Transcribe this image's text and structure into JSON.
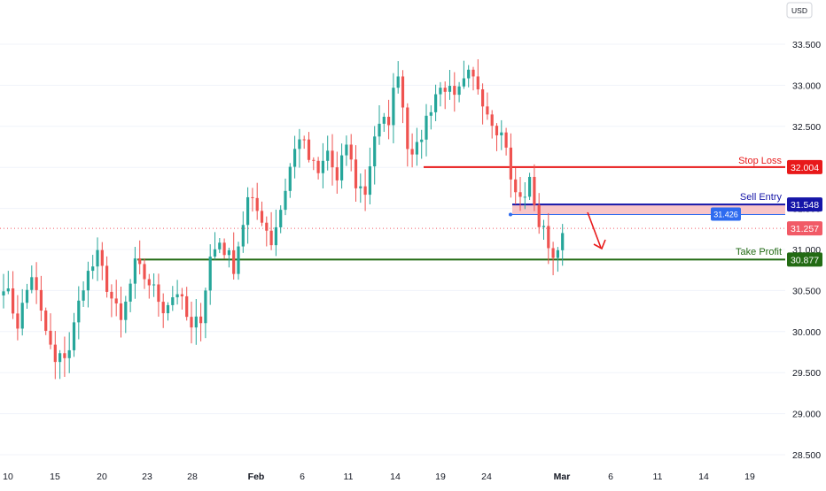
{
  "header": {
    "currency": "USD"
  },
  "levels": {
    "stop_loss": {
      "label": "Stop Loss",
      "value": "32.004",
      "color": "#e8191a"
    },
    "sell_entry": {
      "label": "Sell Entry",
      "value": "31.548",
      "color": "#1515a8"
    },
    "take_profit": {
      "label": "Take Profit",
      "value": "30.877",
      "color": "#236b14"
    },
    "current_price": {
      "value": "31.257",
      "color": "#f15a66"
    },
    "crosshair_price": {
      "value": "31.426",
      "color": "#2e6bf0"
    }
  },
  "colors": {
    "up": "#26a69a",
    "down": "#ef5350",
    "zone": "#f8c5c8",
    "arrow": "#e8191a"
  },
  "chart_data": {
    "type": "candlestick",
    "ylim": [
      28.4,
      34.3
    ],
    "y_ticks": [
      "28.500",
      "29.000",
      "29.500",
      "30.000",
      "30.500",
      "31.000",
      "31.500",
      "32.000",
      "32.500",
      "33.000",
      "33.500"
    ],
    "x_ticks": [
      "10",
      "15",
      "20",
      "23",
      "28",
      "Feb",
      "6",
      "11",
      "14",
      "19",
      "24",
      "Mar",
      "6",
      "11",
      "14",
      "19"
    ],
    "bold_x_ticks": [
      "Feb",
      "Mar"
    ],
    "shape": [
      [
        0,
        30.6
      ],
      [
        3,
        30.1
      ],
      [
        6,
        30.7
      ],
      [
        8,
        30.2
      ],
      [
        11,
        29.6
      ],
      [
        14,
        29.8
      ],
      [
        17,
        30.6
      ],
      [
        20,
        30.9
      ],
      [
        23,
        30.4
      ],
      [
        25,
        30.1
      ],
      [
        28,
        30.8
      ],
      [
        31,
        30.6
      ],
      [
        34,
        30.3
      ],
      [
        37,
        30.5
      ],
      [
        40,
        30.0
      ],
      [
        42,
        30.2
      ],
      [
        44,
        30.9
      ],
      [
        46,
        31.1
      ],
      [
        49,
        30.8
      ],
      [
        52,
        31.6
      ],
      [
        55,
        31.4
      ],
      [
        57,
        31.1
      ],
      [
        59,
        31.5
      ],
      [
        61,
        32.0
      ],
      [
        63,
        32.4
      ],
      [
        65,
        32.1
      ],
      [
        67,
        31.9
      ],
      [
        69,
        32.2
      ],
      [
        71,
        31.8
      ],
      [
        73,
        32.3
      ],
      [
        75,
        31.8
      ],
      [
        77,
        31.7
      ],
      [
        79,
        32.4
      ],
      [
        82,
        32.6
      ],
      [
        84,
        33.2
      ],
      [
        86,
        32.3
      ],
      [
        88,
        32.2
      ],
      [
        90,
        32.6
      ],
      [
        92,
        32.9
      ],
      [
        94,
        33.0
      ],
      [
        96,
        32.8
      ],
      [
        99,
        33.1
      ],
      [
        101,
        33.0
      ],
      [
        103,
        32.7
      ],
      [
        105,
        32.5
      ],
      [
        107,
        32.3
      ],
      [
        108,
        31.8
      ],
      [
        110,
        31.6
      ],
      [
        112,
        31.8
      ],
      [
        113,
        31.6
      ],
      [
        114,
        31.3
      ],
      [
        116,
        31.1
      ],
      [
        117,
        30.9
      ],
      [
        118,
        31.1
      ],
      [
        119,
        31.2
      ]
    ]
  }
}
